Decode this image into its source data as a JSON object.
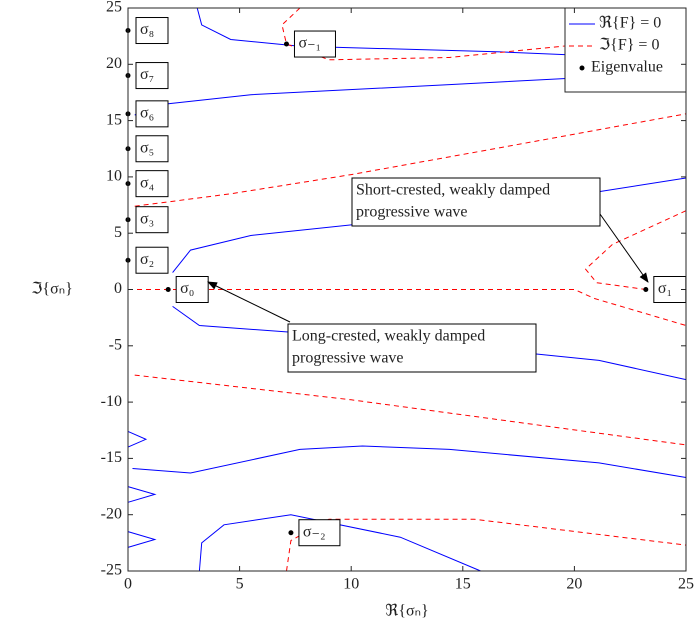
{
  "chart_data": {
    "type": "contour",
    "x_label": "ℜ{σₙ}",
    "y_label": "ℑ{σₙ}",
    "xlim": [
      0,
      25
    ],
    "ylim": [
      -25,
      25
    ],
    "xticks": [
      0,
      5,
      10,
      15,
      20,
      25
    ],
    "yticks": [
      -25,
      -20,
      -15,
      -10,
      -5,
      0,
      5,
      10,
      15,
      20,
      25
    ],
    "series": [
      {
        "name": "ℜ{F} = 0",
        "color": "#0000ff",
        "dash": false,
        "curves": [
          {
            "x": [
              3.1,
              3.3,
              4.6,
              7.7,
              16.7,
              25
            ],
            "y": [
              25,
              23.5,
              22.2,
              21.6,
              21.1,
              20.4
            ]
          },
          {
            "x": [
              0.3,
              1.4,
              5.5,
              14.4,
              25
            ],
            "y": [
              15.5,
              16.4,
              17.3,
              18.2,
              19.3
            ]
          },
          {
            "x": [
              2.0,
              2.8,
              5.5,
              12.2,
              18.9,
              25
            ],
            "y": [
              1.5,
              3.5,
              4.8,
              6.2,
              8.0,
              9.9
            ]
          },
          {
            "x": [
              2.0,
              3.2,
              12.2,
              21.1,
              25
            ],
            "y": [
              -1.5,
              -3.2,
              -4.5,
              -6.3,
              -8.0
            ]
          },
          {
            "x": [
              0.2,
              2.8,
              7.7,
              10.5,
              14.4,
              21.1,
              25
            ],
            "y": [
              -15.9,
              -16.3,
              -14.2,
              -13.9,
              -14.2,
              -15.4,
              -16.7
            ]
          },
          {
            "x": [
              3.2,
              3.3,
              4.3,
              7.3,
              12.2,
              15.8
            ],
            "y": [
              -25,
              -22.5,
              -20.9,
              -20.0,
              -22.0,
              -25
            ]
          },
          {
            "x": [
              0,
              0.8,
              0
            ],
            "y": [
              -12.6,
              -13.3,
              -14.0
            ]
          },
          {
            "x": [
              0,
              1.2,
              0
            ],
            "y": [
              -17.5,
              -18.2,
              -18.9
            ]
          },
          {
            "x": [
              0,
              1.2,
              0
            ],
            "y": [
              -21.5,
              -22.2,
              -22.9
            ]
          }
        ]
      },
      {
        "name": "ℑ{F} = 0",
        "color": "#ff0000",
        "dash": true,
        "curves": [
          {
            "x": [
              7.7,
              6.9,
              7.1,
              9.0,
              14.4,
              25
            ],
            "y": [
              25,
              23.5,
              21.8,
              20.4,
              20.6,
              22.7
            ]
          },
          {
            "x": [
              0.3,
              4.6,
              10.0,
              16.7,
              25
            ],
            "y": [
              7.4,
              8.5,
              10.2,
              12.6,
              15.6
            ]
          },
          {
            "x": [
              0,
              20.0,
              20.9,
              25
            ],
            "y": [
              0,
              0,
              -0.8,
              -3.2
            ]
          },
          {
            "x": [
              25,
              21.7,
              20.5,
              21.0,
              23.2
            ],
            "y": [
              7.0,
              4.0,
              1.8,
              0.6,
              0
            ]
          },
          {
            "x": [
              0.3,
              10.0,
              19.0,
              25
            ],
            "y": [
              -7.6,
              -9.8,
              -12.2,
              -13.8
            ]
          },
          {
            "x": [
              7.1,
              7.3,
              9.0,
              15.5,
              25
            ],
            "y": [
              -25,
              -22.3,
              -20.4,
              -20.4,
              -22.7
            ]
          }
        ]
      }
    ],
    "points": {
      "name": "Eigenvalue",
      "color": "#000000",
      "x": [
        0,
        0,
        0,
        0,
        0,
        0,
        0,
        1.8,
        23.2,
        7.1,
        7.3
      ],
      "y": [
        23,
        19,
        15.6,
        12.5,
        9.4,
        6.2,
        2.6,
        0,
        0,
        21.8,
        -21.6
      ],
      "labels": [
        "σ₈",
        "σ₇",
        "σ₆",
        "σ₅",
        "σ₄",
        "σ₃",
        "σ₂",
        "σ₀",
        "σ₁",
        "σ₋₁",
        "σ₋₂"
      ]
    },
    "annotations": [
      {
        "lines": [
          "Short-crested, weakly damped",
          "progressive wave"
        ]
      },
      {
        "lines": [
          "Long-crested, weakly damped",
          "progressive wave"
        ]
      }
    ],
    "legend": "upper right"
  }
}
